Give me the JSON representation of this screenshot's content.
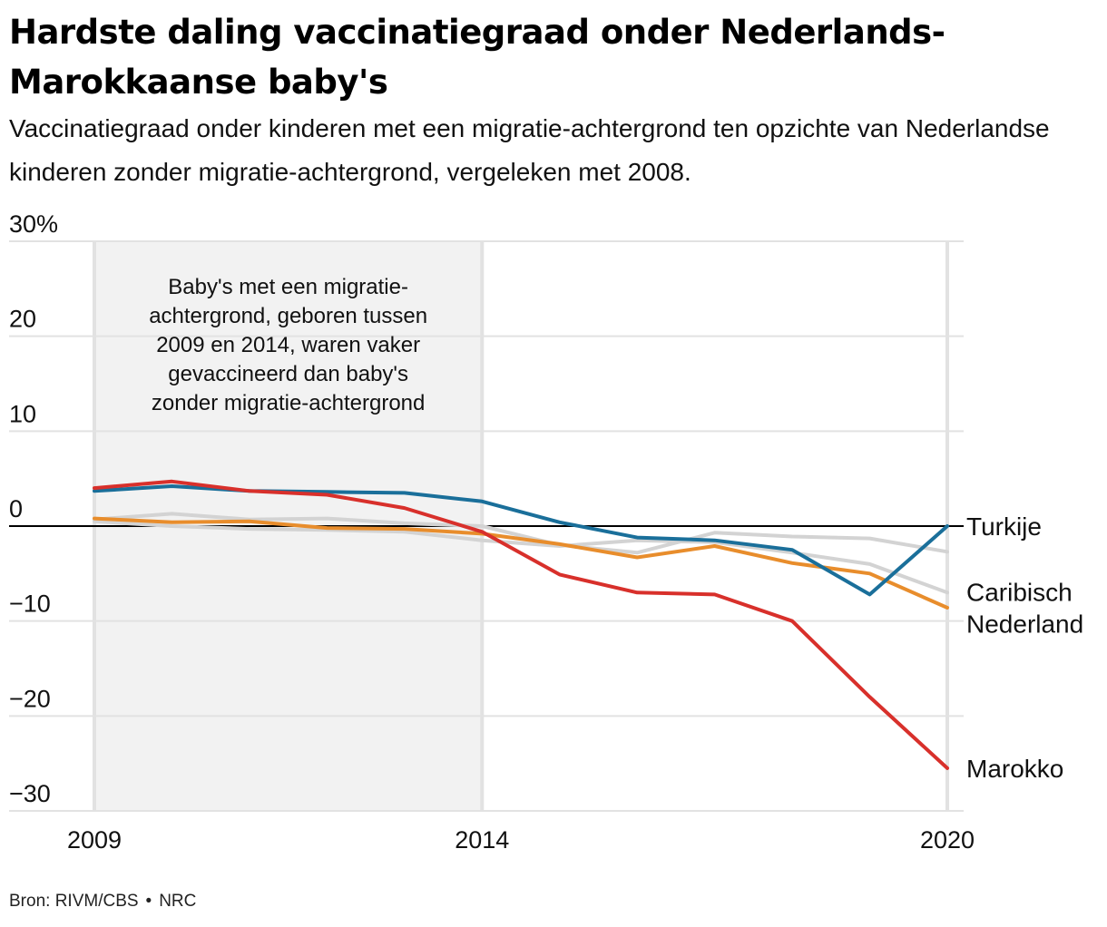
{
  "title": "Hardste daling vaccinatiegraad onder Nederlands-Marokkaanse baby's",
  "subtitle": "Vaccinatiegraad onder kinderen met een migratie-achtergrond ten opzichte van Nederlandse kinderen zonder migratie-achtergrond, vergeleken met 2008.",
  "source": {
    "text": "Bron: RIVM/CBS",
    "dot": "•",
    "publisher": "NRC"
  },
  "annotation": {
    "lines": [
      "Baby's met een migratie-",
      "achtergrond, geboren tussen",
      "2009 en 2014, waren vaker",
      "gevaccineerd dan baby's",
      "zonder migratie-achtergrond"
    ],
    "x_range": [
      2009,
      2014
    ]
  },
  "chart_data": {
    "type": "line",
    "title": "Hardste daling vaccinatiegraad onder Nederlands-Marokkaanse baby's",
    "xlabel": "",
    "ylabel": "",
    "xlim": [
      2009,
      2020
    ],
    "ylim": [
      -30,
      30
    ],
    "x_ticks": [
      2009,
      2014,
      2020
    ],
    "y_ticks": [
      30,
      20,
      10,
      0,
      -10,
      -20,
      -30
    ],
    "y_tick_labels": [
      "30%",
      "20",
      "10",
      "0",
      "−10",
      "−20",
      "−30"
    ],
    "grid": true,
    "legend": "direct labels at line ends",
    "x": [
      2009,
      2010,
      2011,
      2012,
      2013,
      2014,
      2015,
      2016,
      2017,
      2018,
      2019,
      2020
    ],
    "series": [
      {
        "name": "",
        "color": "#d3d3d3",
        "values": [
          0.7,
          1.3,
          0.7,
          0.8,
          0.3,
          0.0,
          -2.0,
          -2.8,
          -0.7,
          -1.1,
          -1.3,
          -2.7
        ]
      },
      {
        "name": "",
        "color": "#d3d3d3",
        "values": [
          0.5,
          0.0,
          -0.3,
          -0.4,
          -0.6,
          -1.5,
          -2.1,
          -1.5,
          -1.7,
          -2.8,
          -4.0,
          -7.0
        ]
      },
      {
        "name": "Caribisch Nederland",
        "color": "#e88d2c",
        "values": [
          0.8,
          0.4,
          0.5,
          -0.2,
          -0.3,
          -0.8,
          -1.9,
          -3.3,
          -2.1,
          -3.9,
          -5.0,
          -8.6
        ]
      },
      {
        "name": "Turkije",
        "color": "#1a6f9a",
        "values": [
          3.7,
          4.2,
          3.7,
          3.6,
          3.5,
          2.6,
          0.4,
          -1.2,
          -1.5,
          -2.5,
          -7.2,
          0.0
        ]
      },
      {
        "name": "Marokko",
        "color": "#d8302b",
        "values": [
          4.0,
          4.7,
          3.7,
          3.3,
          1.9,
          -0.6,
          -5.1,
          -7.0,
          -7.2,
          -10.0,
          -18.0,
          -25.5
        ]
      }
    ],
    "end_labels": [
      {
        "lines": [
          "Turkije"
        ],
        "series": "Turkije"
      },
      {
        "lines": [
          "Caribisch",
          "Nederland"
        ],
        "series": "Caribisch Nederland"
      },
      {
        "lines": [
          "Marokko"
        ],
        "series": "Marokko"
      }
    ],
    "colors": {
      "zero_line": "#000000",
      "grid": "#e2e2e2",
      "shade": "#f2f2f2"
    }
  }
}
